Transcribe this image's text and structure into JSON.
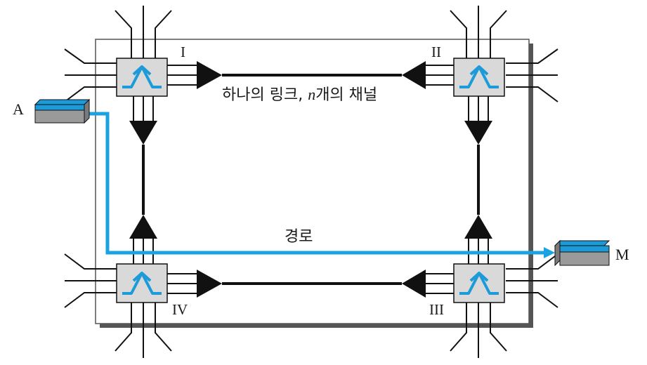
{
  "labels": {
    "switch_1": "I",
    "switch_2": "II",
    "switch_3": "III",
    "switch_4": "IV",
    "node_a": "A",
    "node_m": "M",
    "link_caption": "하나의 링크, ",
    "link_caption_n": "n",
    "link_caption_rest": "개의 채널",
    "path_caption": "경로"
  },
  "colors": {
    "path": "#1aa3e0",
    "device_top": "#1c9bd8",
    "device_body": "#9a9a9a",
    "switch_fill": "#d9d9d9",
    "switch_icon": "#1c9bd8",
    "line": "#111111",
    "shadow": "#555555"
  },
  "icons": {
    "switch": "crossbar-switch-icon",
    "device": "terminal-device-icon"
  }
}
